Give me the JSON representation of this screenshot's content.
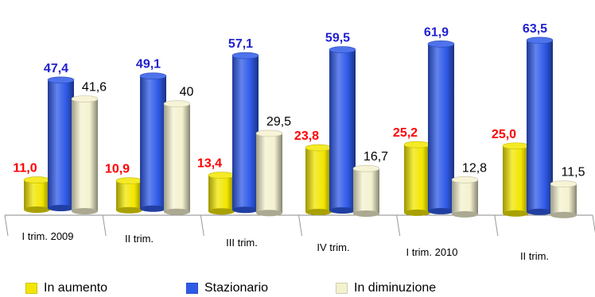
{
  "chart_data": {
    "type": "bar",
    "categories": [
      "I trim. 2009",
      "II trim.",
      "III trim.",
      "IV trim.",
      "I trim. 2010",
      "II trim."
    ],
    "series": [
      {
        "name": "In aumento",
        "values": [
          11.0,
          10.9,
          13.4,
          23.8,
          25.2,
          25.0
        ],
        "labels": [
          "11,0",
          "10,9",
          "13,4",
          "23,8",
          "25,2",
          "25,0"
        ],
        "color": "#f2e600",
        "label_color": "#ff0000"
      },
      {
        "name": "Stazionario",
        "values": [
          47.4,
          49.1,
          57.1,
          59.5,
          61.9,
          63.5
        ],
        "labels": [
          "47,4",
          "49,1",
          "57,1",
          "59,5",
          "61,9",
          "63,5"
        ],
        "color": "#2f5ae8",
        "label_color": "#1f1fd0"
      },
      {
        "name": "In diminuzione",
        "values": [
          41.6,
          40,
          29.5,
          16.7,
          12.8,
          11.5
        ],
        "labels": [
          "41,6",
          "40",
          "29,5",
          "16,7",
          "12,8",
          "11,5"
        ],
        "color": "#f4f1cf",
        "label_color": "#000000"
      }
    ],
    "ylim": [
      0,
      70
    ],
    "grid": false,
    "legend_position": "bottom-left"
  }
}
